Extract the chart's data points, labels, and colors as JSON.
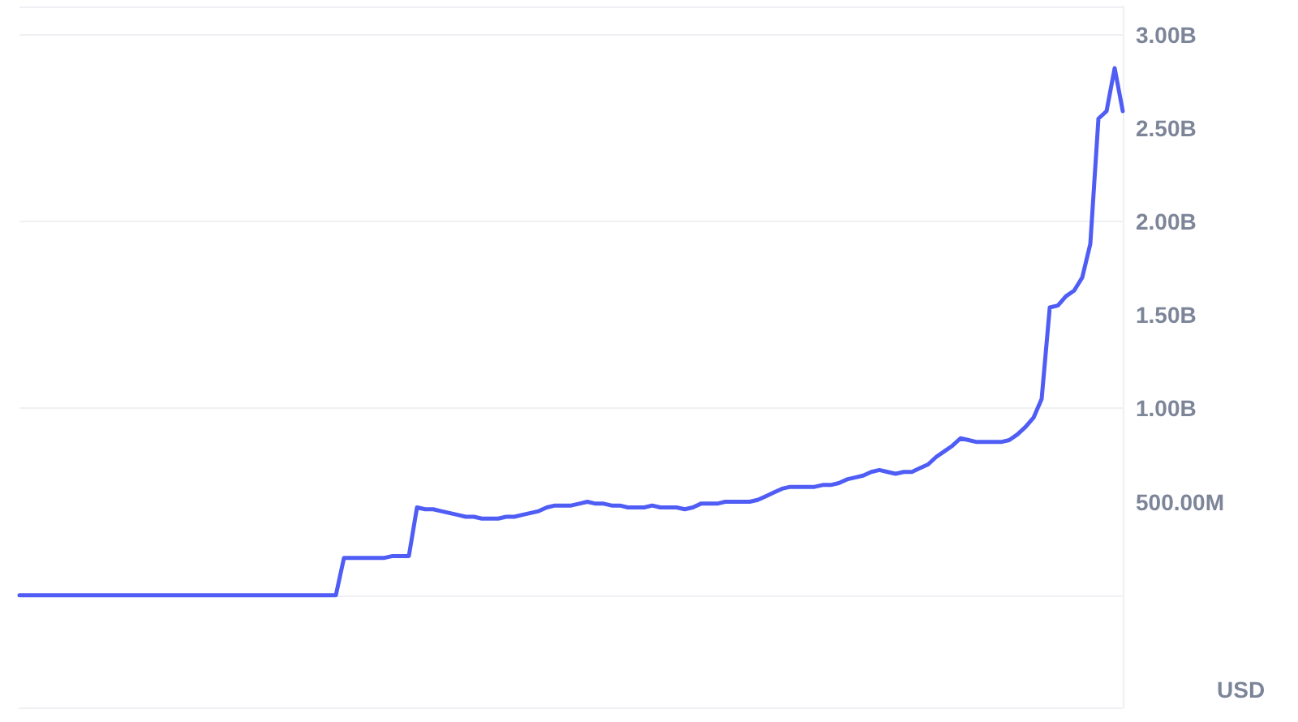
{
  "chart_data": {
    "type": "line",
    "ylabel": "USD",
    "color": "#4f5df5",
    "categories": [
      null,
      null,
      null,
      null,
      null,
      null,
      null,
      null,
      null,
      null,
      null,
      null,
      null,
      null,
      null,
      null,
      null,
      null,
      null,
      null,
      null,
      null,
      null,
      null,
      null,
      null,
      null,
      null,
      null,
      null,
      null,
      null,
      null,
      null,
      null,
      null,
      null,
      null,
      null,
      null,
      null,
      null,
      null,
      null,
      null,
      null,
      null,
      null,
      null,
      null,
      null,
      null,
      null,
      null,
      null,
      null,
      null,
      null,
      null,
      null,
      null,
      null,
      null,
      null,
      null,
      null,
      null,
      null,
      null,
      null,
      null,
      null,
      null,
      null,
      null,
      null,
      null,
      null,
      null,
      null,
      null,
      null,
      null,
      null,
      null,
      null,
      null,
      null,
      null,
      null,
      null,
      null,
      null,
      null,
      null,
      null,
      null,
      null,
      null,
      null,
      null,
      null,
      null,
      null,
      null,
      null,
      null,
      null,
      null,
      null,
      null,
      null,
      null,
      null,
      null,
      null,
      null,
      null,
      null,
      null,
      null,
      null,
      null,
      null,
      null,
      null,
      null,
      null,
      null,
      null,
      null,
      null,
      null,
      null,
      null,
      null,
      null
    ],
    "values": [
      0,
      0,
      0,
      0,
      0,
      0,
      0,
      0,
      0,
      0,
      0,
      0,
      0,
      0,
      0,
      0,
      0,
      0,
      0,
      0,
      0,
      0,
      0,
      0,
      0,
      0,
      0,
      0,
      0,
      0,
      0,
      0,
      0,
      0,
      0,
      0,
      0,
      0,
      0,
      0,
      200000000,
      200000000,
      200000000,
      200000000,
      200000000,
      200000000,
      210000000,
      210000000,
      210000000,
      470000000,
      460000000,
      460000000,
      450000000,
      440000000,
      430000000,
      420000000,
      420000000,
      410000000,
      410000000,
      410000000,
      420000000,
      420000000,
      430000000,
      440000000,
      450000000,
      470000000,
      480000000,
      480000000,
      480000000,
      490000000,
      500000000,
      490000000,
      490000000,
      480000000,
      480000000,
      470000000,
      470000000,
      470000000,
      480000000,
      470000000,
      470000000,
      470000000,
      460000000,
      470000000,
      490000000,
      490000000,
      490000000,
      500000000,
      500000000,
      500000000,
      500000000,
      510000000,
      530000000,
      550000000,
      570000000,
      580000000,
      580000000,
      580000000,
      580000000,
      590000000,
      590000000,
      600000000,
      620000000,
      630000000,
      640000000,
      660000000,
      670000000,
      660000000,
      650000000,
      660000000,
      660000000,
      680000000,
      700000000,
      740000000,
      770000000,
      800000000,
      840000000,
      830000000,
      820000000,
      820000000,
      820000000,
      820000000,
      830000000,
      860000000,
      900000000,
      950000000,
      1050000000,
      1540000000,
      1550000000,
      1600000000,
      1630000000,
      1700000000,
      1880000000,
      2550000000,
      2590000000,
      2820000000,
      2590000000
    ],
    "ylim": [
      -600000000,
      3150000000
    ],
    "yticks": [
      {
        "value": 0,
        "label": null
      },
      {
        "value": 500000000,
        "label": "500.00M"
      },
      {
        "value": 1000000000,
        "label": "1.00B"
      },
      {
        "value": 1500000000,
        "label": "1.50B"
      },
      {
        "value": 2000000000,
        "label": "2.00B"
      },
      {
        "value": 2500000000,
        "label": "2.50B"
      },
      {
        "value": 3000000000,
        "label": "3.00B"
      }
    ],
    "tick_labels": "y",
    "grid": "y",
    "line_style": "solid"
  }
}
